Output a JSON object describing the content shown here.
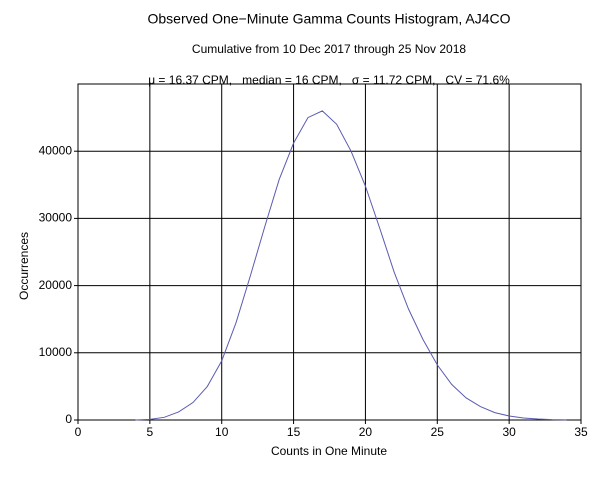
{
  "chart_data": {
    "type": "line",
    "title": "Observed One−Minute Gamma Counts Histogram, AJ4CO",
    "subtitle": "Cumulative from 10 Dec 2017 through 25 Nov 2018",
    "annotation": "μ = 16.37 CPM,   median = 16 CPM,   σ = 11.72 CPM,   CV = 71.6%",
    "x_label": "Counts in One Minute",
    "y_label": "Occurrences",
    "x": [
      4,
      5,
      6,
      7,
      8,
      9,
      10,
      11,
      12,
      13,
      14,
      15,
      16,
      17,
      18,
      19,
      20,
      21,
      22,
      23,
      24,
      25,
      26,
      27,
      28,
      29,
      30,
      31,
      32,
      33,
      34
    ],
    "series": [
      {
        "color": "#5b5bb0",
        "values": [
          0,
          100,
          400,
          1200,
          2600,
          5000,
          8800,
          14500,
          21500,
          28800,
          35800,
          41200,
          45000,
          46000,
          44000,
          40000,
          34800,
          28500,
          22000,
          16500,
          12000,
          8200,
          5300,
          3300,
          2000,
          1100,
          600,
          300,
          150,
          60,
          20
        ]
      }
    ],
    "xlim": [
      0,
      35
    ],
    "xticks": [
      0,
      5,
      10,
      15,
      20,
      25,
      30,
      35
    ],
    "ylim": [
      0,
      50000
    ],
    "yticks": [
      0,
      10000,
      20000,
      30000,
      40000
    ],
    "grid": true
  }
}
